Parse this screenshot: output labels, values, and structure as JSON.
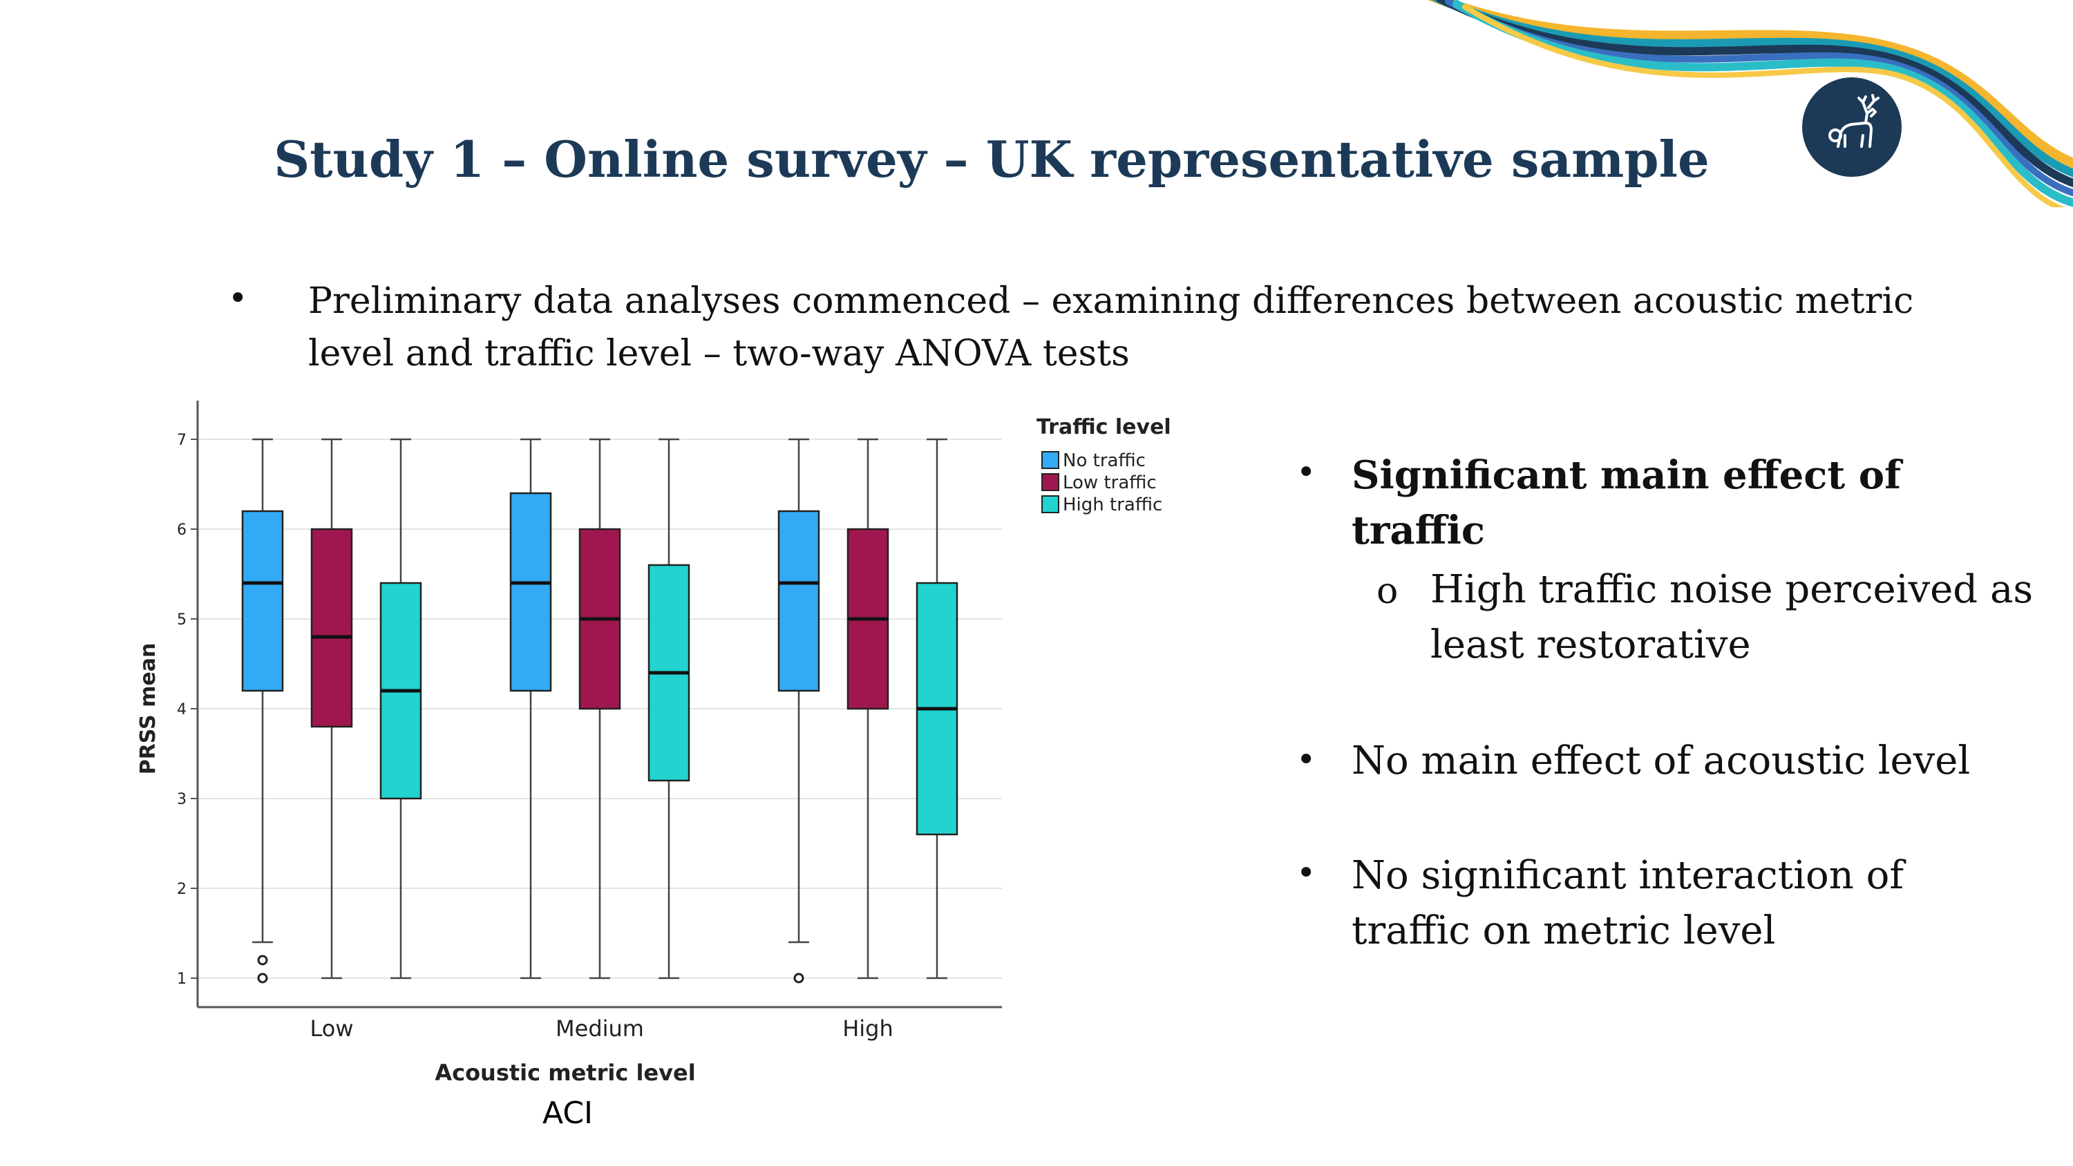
{
  "slide": {
    "title": "Study 1 – Online survey – UK representative sample",
    "intro_bullet": "Preliminary data analyses commenced – examining differences between acoustic metric level and traffic level – two-way ANOVA tests",
    "bullets": [
      {
        "text": "Significant main effect of traffic",
        "bold": true
      },
      {
        "sub": "High traffic noise perceived as least restorative"
      },
      {
        "text": "No main effect of acoustic level",
        "bold": false
      },
      {
        "text": "No significant interaction of traffic on metric level",
        "bold": false
      }
    ],
    "bullet_symbol": "•",
    "sub_bullet_symbol": "o",
    "chart_caption": "ACI",
    "stripe_colors": [
      "#f5b52e",
      "#1b9bb3",
      "#1c3a57",
      "#3a6fc0",
      "#2bbdc7",
      "#f7c948"
    ],
    "logo_color": "#1c3a57"
  },
  "chart_data": {
    "type": "boxplot",
    "xlabel": "Acoustic metric level",
    "ylabel": "PRSS mean",
    "ylim": [
      1,
      7
    ],
    "yticks": [
      1,
      2,
      3,
      4,
      5,
      6,
      7
    ],
    "grid": true,
    "categories": [
      "Low",
      "Medium",
      "High"
    ],
    "legend": {
      "title": "Traffic level",
      "position": "right-top"
    },
    "series": [
      {
        "name": "No traffic",
        "color": "#33aaf5",
        "boxes": [
          {
            "whisker_low": 1.4,
            "q1": 4.2,
            "median": 5.4,
            "q3": 6.2,
            "whisker_high": 7,
            "outliers": [
              1.2,
              1.0
            ]
          },
          {
            "whisker_low": 1.0,
            "q1": 4.2,
            "median": 5.4,
            "q3": 6.4,
            "whisker_high": 7,
            "outliers": []
          },
          {
            "whisker_low": 1.4,
            "q1": 4.2,
            "median": 5.4,
            "q3": 6.2,
            "whisker_high": 7,
            "outliers": [
              1.0
            ]
          }
        ]
      },
      {
        "name": "Low traffic",
        "color": "#a0174f",
        "boxes": [
          {
            "whisker_low": 1.0,
            "q1": 3.8,
            "median": 4.8,
            "q3": 6.0,
            "whisker_high": 7,
            "outliers": []
          },
          {
            "whisker_low": 1.0,
            "q1": 4.0,
            "median": 5.0,
            "q3": 6.0,
            "whisker_high": 7,
            "outliers": []
          },
          {
            "whisker_low": 1.0,
            "q1": 4.0,
            "median": 5.0,
            "q3": 6.0,
            "whisker_high": 7,
            "outliers": []
          }
        ]
      },
      {
        "name": "High traffic",
        "color": "#22d3d0",
        "boxes": [
          {
            "whisker_low": 1.0,
            "q1": 3.0,
            "median": 4.2,
            "q3": 5.4,
            "whisker_high": 7,
            "outliers": []
          },
          {
            "whisker_low": 1.0,
            "q1": 3.2,
            "median": 4.4,
            "q3": 5.6,
            "whisker_high": 7,
            "outliers": []
          },
          {
            "whisker_low": 1.0,
            "q1": 2.6,
            "median": 4.0,
            "q3": 5.4,
            "whisker_high": 7,
            "outliers": []
          }
        ]
      }
    ]
  }
}
